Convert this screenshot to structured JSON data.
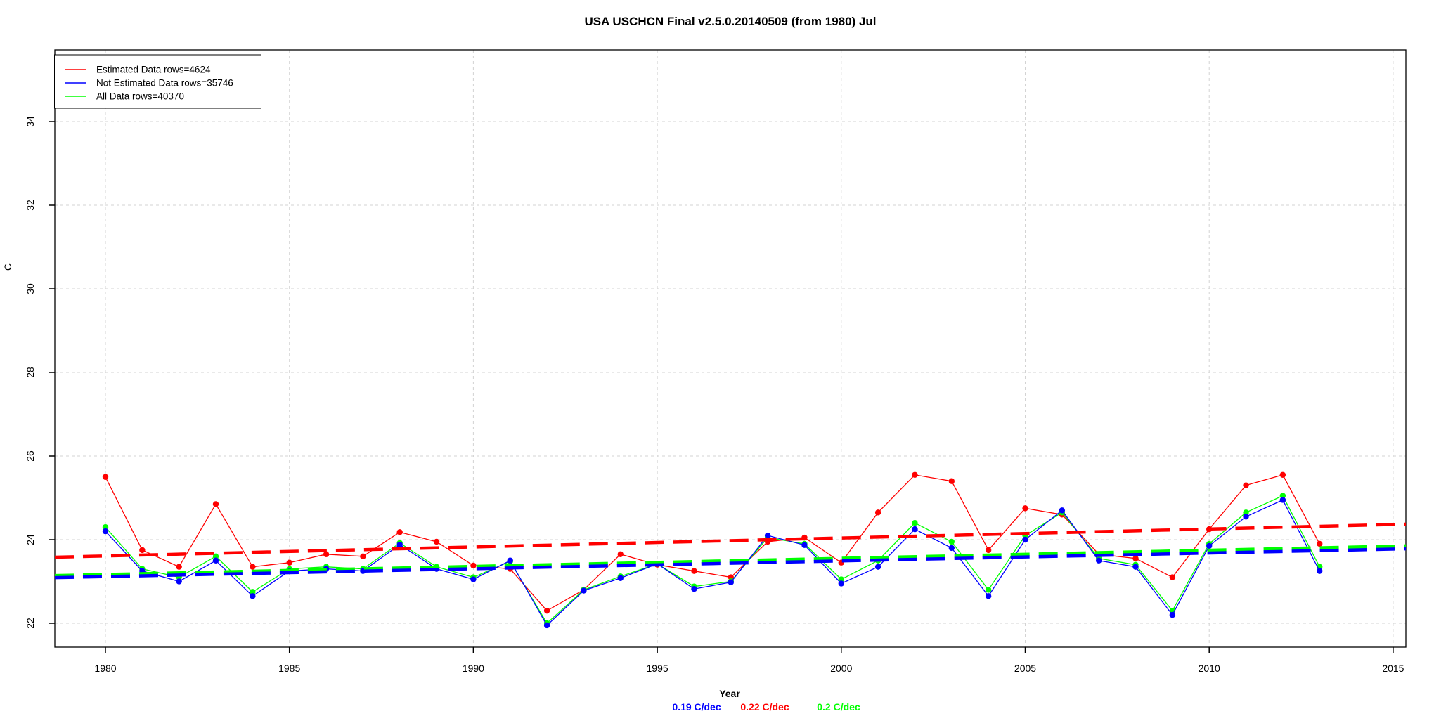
{
  "title": "USA USCHCN Final v2.5.0.20140509 (from 1980) Jul",
  "axes": {
    "x_label": "Year",
    "y_label": "C",
    "x_ticks": [
      1980,
      1985,
      1990,
      1995,
      2000,
      2005,
      2010,
      2015
    ],
    "y_ticks": [
      22,
      24,
      26,
      28,
      30,
      32,
      34
    ]
  },
  "legend": {
    "position": "top-left",
    "items": [
      {
        "label": "Estimated Data rows=4624",
        "color": "#ff0000"
      },
      {
        "label": "Not Estimated Data rows=35746",
        "color": "#0000ff"
      },
      {
        "label": "All Data rows=40370",
        "color": "#00ff00"
      }
    ]
  },
  "trend_rate_labels": [
    {
      "text": "0.19 C/dec",
      "color": "#0000ff"
    },
    {
      "text": "0.22 C/dec",
      "color": "#ff0000"
    },
    {
      "text": "0.2 C/dec",
      "color": "#00ff00"
    }
  ],
  "chart_data": {
    "type": "line",
    "title": "USA USCHCN Final v2.5.0.20140509 (from 1980) Jul",
    "xlabel": "Year",
    "ylabel": "C",
    "grid": true,
    "legend_position": "top-left",
    "xlim": [
      1978.6,
      2015.4
    ],
    "ylim": [
      21.4,
      35.7
    ],
    "x": [
      1980,
      1981,
      1982,
      1983,
      1984,
      1985,
      1986,
      1987,
      1988,
      1989,
      1990,
      1991,
      1992,
      1993,
      1994,
      1995,
      1996,
      1997,
      1998,
      1999,
      2000,
      2001,
      2002,
      2003,
      2004,
      2005,
      2006,
      2007,
      2008,
      2009,
      2010,
      2011,
      2012,
      2013
    ],
    "series": [
      {
        "name": "Estimated Data rows=4624",
        "color": "#ff0000",
        "values": [
          25.5,
          23.75,
          23.35,
          24.85,
          23.35,
          23.45,
          23.65,
          23.6,
          24.18,
          23.95,
          23.38,
          23.3,
          22.3,
          22.8,
          23.65,
          23.4,
          23.25,
          23.1,
          23.95,
          24.05,
          23.45,
          24.65,
          25.55,
          25.4,
          23.75,
          24.75,
          24.6,
          23.65,
          23.55,
          23.1,
          24.25,
          25.3,
          25.55,
          23.9
        ]
      },
      {
        "name": "Not Estimated Data rows=35746",
        "color": "#0000ff",
        "values": [
          24.2,
          23.25,
          23.0,
          23.5,
          22.65,
          23.25,
          23.3,
          23.25,
          23.88,
          23.3,
          23.05,
          23.5,
          21.95,
          22.78,
          23.08,
          23.42,
          22.82,
          22.98,
          24.1,
          23.87,
          22.95,
          23.35,
          24.25,
          23.8,
          22.65,
          24.0,
          24.7,
          23.5,
          23.35,
          22.2,
          23.85,
          24.55,
          24.95,
          23.25
        ]
      },
      {
        "name": "All Data rows=40370",
        "color": "#00ff00",
        "values": [
          24.3,
          23.3,
          23.1,
          23.6,
          22.75,
          23.3,
          23.35,
          23.3,
          23.92,
          23.35,
          23.1,
          23.48,
          22.0,
          22.8,
          23.12,
          23.42,
          22.88,
          23.0,
          24.05,
          23.9,
          23.05,
          23.5,
          24.4,
          23.95,
          22.8,
          24.1,
          24.65,
          23.55,
          23.4,
          22.3,
          23.9,
          24.65,
          25.05,
          23.35
        ]
      }
    ],
    "trend_lines": [
      {
        "name": "Estimated trend",
        "color": "#ff0000",
        "start_value": 23.58,
        "end_value": 24.37,
        "rate": "0.22 C/dec"
      },
      {
        "name": "Not Estimated trend",
        "color": "#0000ff",
        "start_value": 23.09,
        "end_value": 23.78,
        "rate": "0.19 C/dec"
      },
      {
        "name": "All trend",
        "color": "#00ff00",
        "start_value": 23.14,
        "end_value": 23.85,
        "rate": "0.2 C/dec"
      }
    ]
  }
}
